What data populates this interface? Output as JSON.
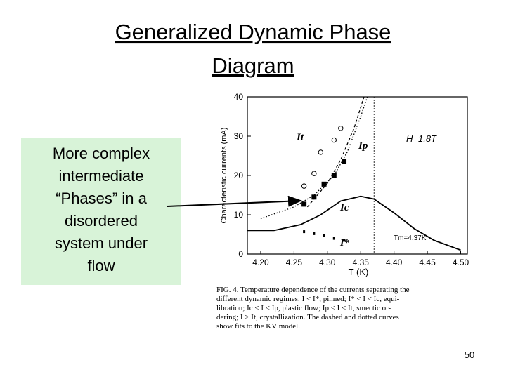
{
  "slide": {
    "title_lines": [
      "Generalized Dynamic Phase",
      "Diagram"
    ],
    "callout_lines": [
      "More complex",
      "intermediate",
      "“Phases” in a",
      "disordered",
      "system under",
      "flow"
    ],
    "caption_lines": [
      "FIG. 4.   Temperature dependence of the currents separating the",
      "different dynamic regimes: I < I*, pinned; I* < I < Ic, equi-",
      "libration; Ic < I < Ip, plastic flow; Ip < I < It, smectic or-",
      "dering; I > It, crystallization. The dashed and dotted curves",
      "show fits to the KV model."
    ],
    "page_number": "50"
  },
  "chart_data": {
    "type": "line",
    "x_label": "T (K)",
    "y_label": "Characteristic currents (mA)",
    "annotations": [
      "It",
      "Ip",
      "Ic",
      "I*",
      "H=1.8T",
      "Tm=4.37K"
    ],
    "vline": 4.37,
    "xlim": [
      4.18,
      4.51
    ],
    "ylim": [
      0,
      40
    ],
    "xticks": [
      {
        "value": 4.2,
        "label": "4.20"
      },
      4.25,
      {
        "value": 4.3,
        "label": "4.30"
      },
      4.35,
      {
        "value": 4.4,
        "label": "4.40"
      },
      4.45,
      {
        "value": 4.5,
        "label": "4.50"
      }
    ],
    "yticks": [
      0,
      10,
      20,
      30,
      40
    ],
    "color": "#000000",
    "series": [
      {
        "style": "solid",
        "x": [
          4.18,
          4.22,
          4.26,
          4.29,
          4.32,
          4.35,
          4.37,
          4.4,
          4.43,
          4.46,
          4.5
        ],
        "values": [
          6,
          6,
          7.5,
          10,
          13.5,
          14.7,
          14,
          10.5,
          6.5,
          3.5,
          1
        ]
      },
      {
        "style": "dashed",
        "x": [
          4.27,
          4.3,
          4.32,
          4.34,
          4.355
        ],
        "values": [
          12,
          18,
          24,
          32,
          40
        ]
      },
      {
        "style": "dotted",
        "x": [
          4.2,
          4.25,
          4.28,
          4.31,
          4.33,
          4.35,
          4.36
        ],
        "values": [
          9,
          12,
          15,
          20,
          26,
          35,
          40
        ]
      },
      {
        "style": "open-circle",
        "x": [
          4.265,
          4.28,
          4.29,
          4.31,
          4.32
        ],
        "values": [
          17.3,
          20.5,
          25.9,
          29,
          32
        ]
      },
      {
        "style": "filled-square",
        "x": [
          4.265,
          4.28,
          4.295,
          4.31,
          4.325
        ],
        "values": [
          12.7,
          14.5,
          17.8,
          20,
          23.5
        ]
      },
      {
        "style": "small-marker",
        "x": [
          4.265,
          4.28,
          4.295,
          4.31,
          4.325
        ],
        "values": [
          5.7,
          5.2,
          4.7,
          4,
          3.5
        ]
      }
    ]
  }
}
